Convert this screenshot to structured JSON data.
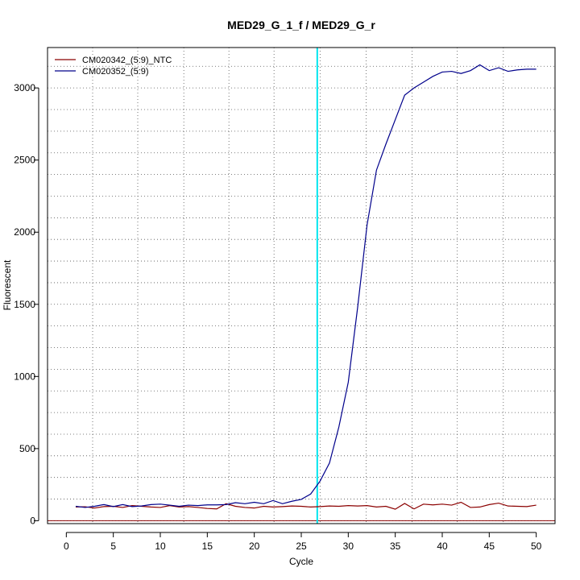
{
  "chart_data": {
    "type": "line",
    "title": "MED29_G_1_f / MED29_G_r",
    "xlabel": "Cycle",
    "ylabel": "Fluorescent",
    "xlim": [
      -2,
      52
    ],
    "ylim": [
      -20,
      3280
    ],
    "x_ticks": [
      0,
      5,
      10,
      15,
      20,
      25,
      30,
      35,
      40,
      45,
      50
    ],
    "y_ticks": [
      0,
      500,
      1000,
      1500,
      2000,
      2500,
      3000
    ],
    "grid": true,
    "grid_x": [
      2.8,
      7.6,
      12.5,
      17.3,
      22.1,
      27.0,
      31.9,
      36.8,
      41.6,
      46.5
    ],
    "grid_y": [
      0,
      150,
      300,
      450,
      600,
      750,
      900,
      1050,
      1200,
      1350,
      1500,
      1650,
      1800,
      1950,
      2100,
      2250,
      2400,
      2550,
      2700,
      2850,
      3000,
      3150
    ],
    "threshold_x": 26.7,
    "threshold_color": "#00e5ee",
    "baseline_y": 0,
    "baseline_color": "#8b0000",
    "legend_position": "top-left",
    "x": [
      1,
      2,
      3,
      4,
      5,
      6,
      7,
      8,
      9,
      10,
      11,
      12,
      13,
      14,
      15,
      16,
      17,
      18,
      19,
      20,
      21,
      22,
      23,
      24,
      25,
      26,
      27,
      28,
      29,
      30,
      31,
      32,
      33,
      34,
      35,
      36,
      37,
      38,
      39,
      40,
      41,
      42,
      43,
      44,
      45,
      46,
      47,
      48,
      49,
      50
    ],
    "series": [
      {
        "name": "CM020342_(5:9)_NTC",
        "color": "#8b0000",
        "values": [
          95,
          97,
          88,
          98,
          100,
          92,
          105,
          100,
          95,
          92,
          105,
          95,
          98,
          92,
          85,
          82,
          118,
          100,
          92,
          88,
          100,
          95,
          98,
          102,
          100,
          95,
          98,
          102,
          100,
          105,
          102,
          105,
          95,
          100,
          80,
          120,
          82,
          115,
          110,
          115,
          108,
          128,
          92,
          95,
          112,
          122,
          102,
          100,
          98,
          108
        ]
      },
      {
        "name": "CM020352_(5:9)",
        "color": "#00008b",
        "values": [
          100,
          92,
          100,
          112,
          98,
          112,
          98,
          102,
          112,
          115,
          108,
          100,
          108,
          105,
          110,
          110,
          112,
          125,
          118,
          128,
          118,
          140,
          118,
          135,
          148,
          185,
          275,
          400,
          650,
          960,
          1480,
          2050,
          2430,
          2610,
          2780,
          2950,
          3000,
          3040,
          3080,
          3110,
          3115,
          3100,
          3120,
          3160,
          3120,
          3140,
          3115,
          3125,
          3130,
          3130
        ]
      }
    ]
  }
}
